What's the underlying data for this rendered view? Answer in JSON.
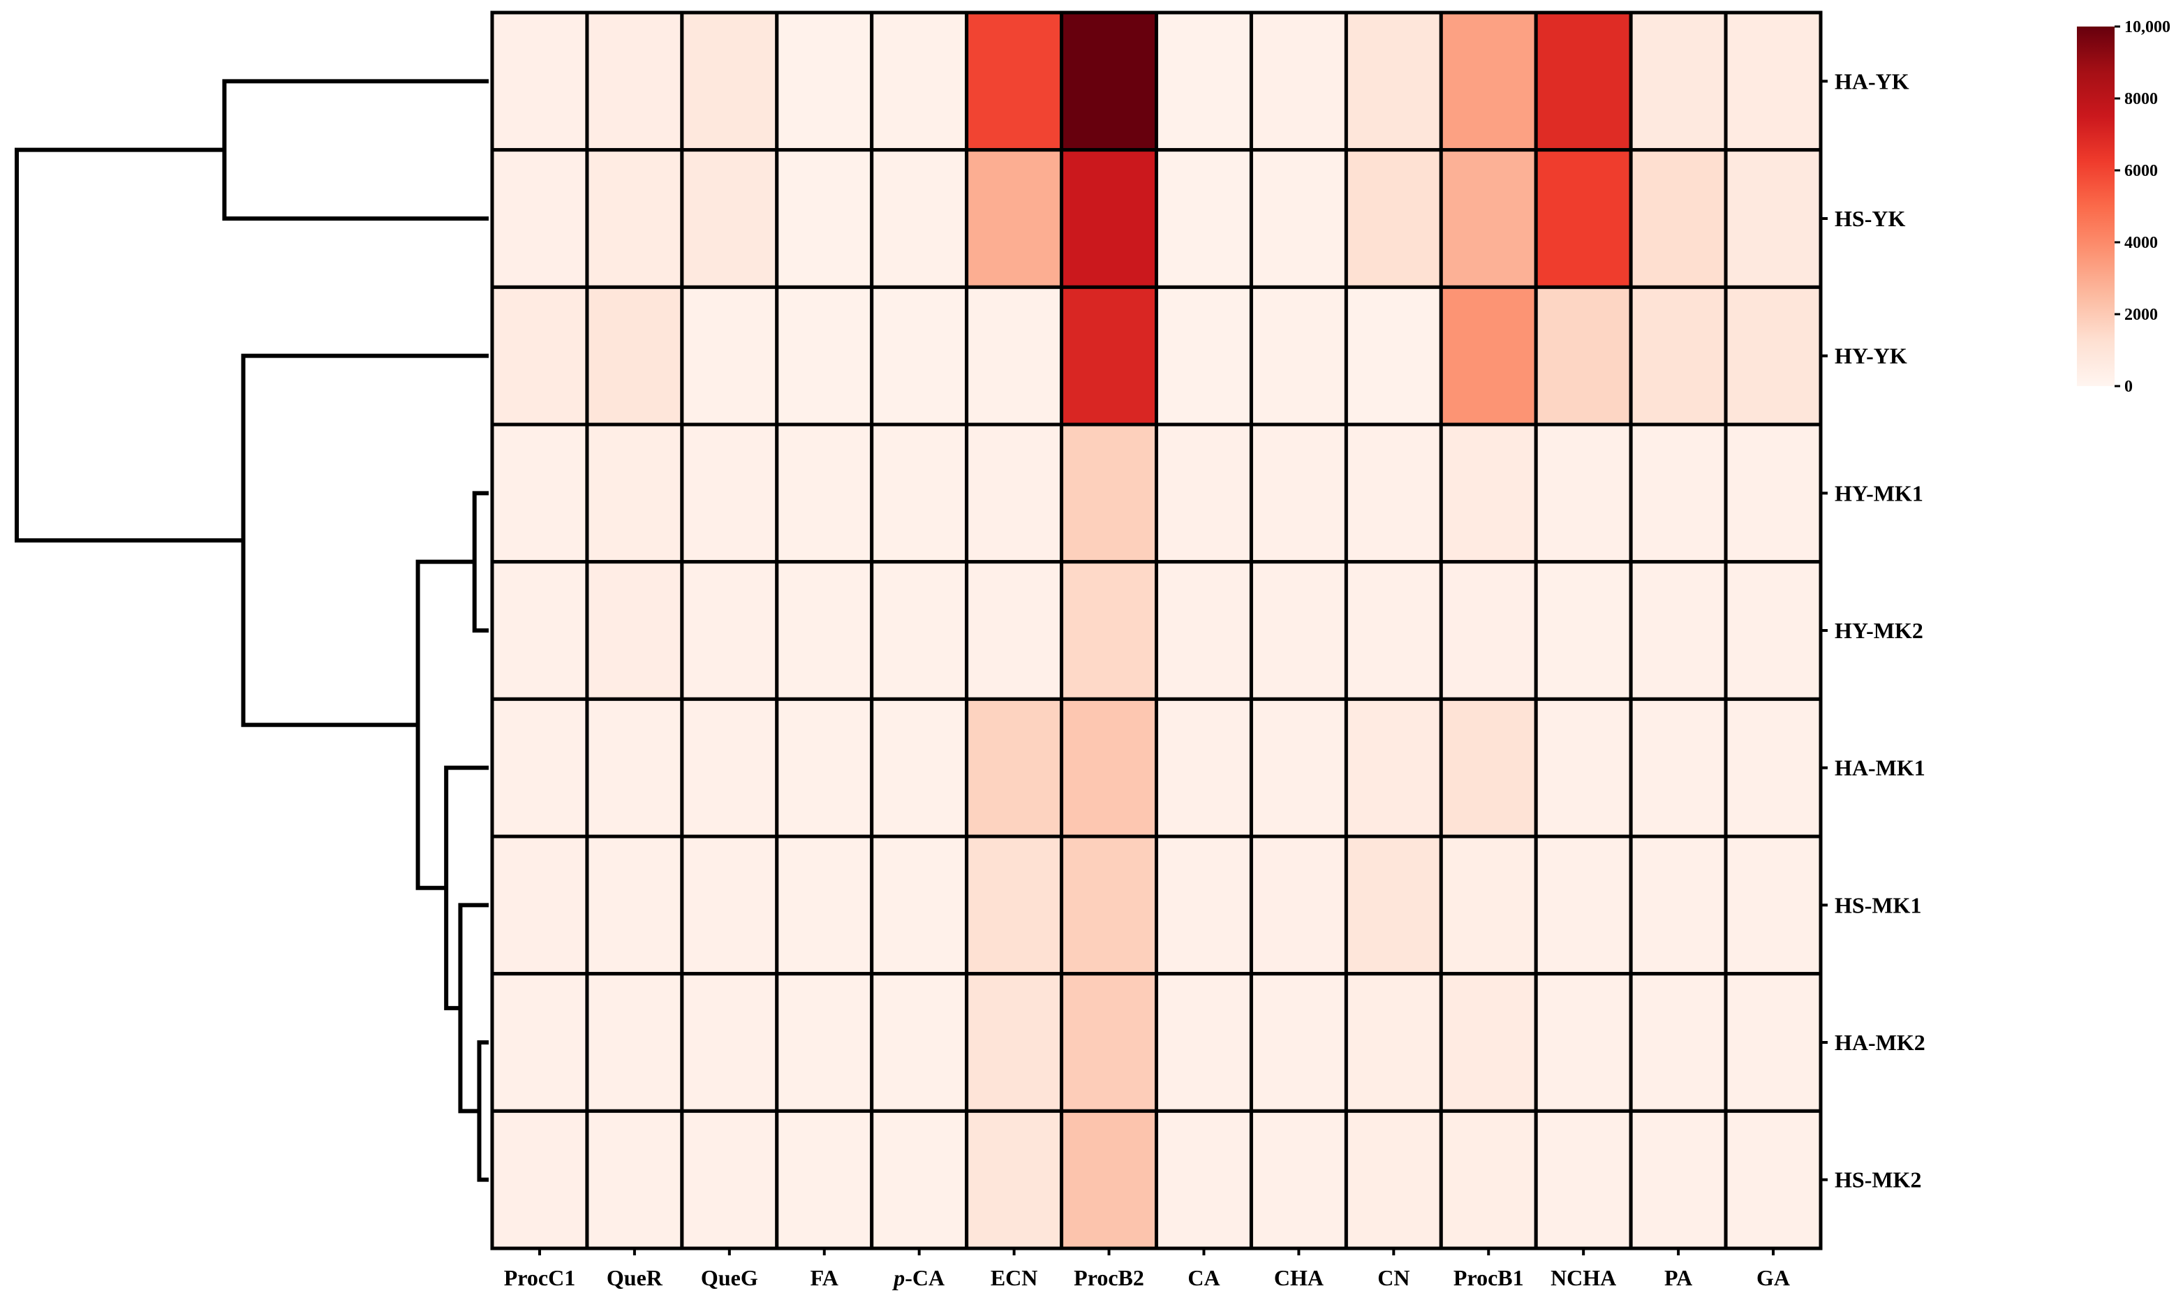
{
  "chart_data": {
    "type": "heatmap",
    "title": "",
    "columns": [
      "ProcC1",
      "QueR",
      "QueG",
      "FA",
      "p-CA",
      "ECN",
      "ProcB2",
      "CA",
      "CHA",
      "CN",
      "ProcB1",
      "NCHA",
      "PA",
      "GA"
    ],
    "rows": [
      "HA-YK",
      "HS-YK",
      "HY-YK",
      "HY-MK1",
      "HY-MK2",
      "HA-MK1",
      "HS-MK1",
      "HA-MK2",
      "HS-MK2"
    ],
    "values": [
      [
        350,
        450,
        800,
        200,
        250,
        6000,
        10000,
        200,
        300,
        900,
        3300,
        6800,
        700,
        600
      ],
      [
        350,
        550,
        700,
        200,
        250,
        2900,
        7500,
        200,
        250,
        1200,
        2800,
        6200,
        1300,
        700
      ],
      [
        600,
        900,
        250,
        200,
        200,
        250,
        7000,
        200,
        250,
        200,
        3700,
        1600,
        1100,
        900
      ],
      [
        300,
        400,
        300,
        250,
        250,
        300,
        1800,
        300,
        300,
        300,
        600,
        300,
        300,
        300
      ],
      [
        300,
        450,
        300,
        250,
        250,
        300,
        1500,
        300,
        300,
        300,
        350,
        250,
        300,
        300
      ],
      [
        300,
        300,
        300,
        250,
        250,
        1700,
        2100,
        300,
        300,
        600,
        1100,
        300,
        300,
        300
      ],
      [
        350,
        300,
        300,
        250,
        250,
        1200,
        1800,
        300,
        350,
        900,
        400,
        300,
        300,
        300
      ],
      [
        300,
        300,
        300,
        250,
        250,
        1000,
        1900,
        300,
        300,
        400,
        600,
        300,
        300,
        300
      ],
      [
        350,
        300,
        300,
        250,
        250,
        900,
        2200,
        300,
        300,
        400,
        400,
        300,
        300,
        300
      ]
    ],
    "colorbar": {
      "min": 0,
      "max": 10000,
      "ticks": [
        0,
        2000,
        4000,
        6000,
        8000,
        10000
      ],
      "tick_labels": [
        "0",
        "2000",
        "4000",
        "6000",
        "8000",
        "10,000"
      ],
      "colormap": "Reds",
      "color_low": "#fff5f0",
      "color_high": "#67000d"
    },
    "row_dendrogram": {
      "position": "left",
      "leaf_order": [
        "HA-YK",
        "HS-YK",
        "HY-YK",
        "HY-MK1",
        "HY-MK2",
        "HA-MK1",
        "HS-MK1",
        "HA-MK2",
        "HS-MK2"
      ],
      "merges": [
        {
          "left": "HA-YK",
          "right": "HS-YK",
          "height": 0.56
        },
        {
          "left": "HA-MK2",
          "right": "HS-MK2",
          "height": 0.02
        },
        {
          "left": "HS-MK1",
          "right": "HA-MK2+HS-MK2",
          "height": 0.06
        },
        {
          "left": "HA-MK1",
          "right": "HS-MK1+HA-MK2+HS-MK2",
          "height": 0.09
        },
        {
          "left": "HY-MK1",
          "right": "HY-MK2",
          "height": 0.03
        },
        {
          "left": "HY-MK1+HY-MK2",
          "right": "HA-MK1+HS-MK1+HA-MK2+HS-MK2",
          "height": 0.15
        },
        {
          "left": "HY-YK",
          "right": "HY-MK1+HY-MK2+HA-MK1+HS-MK1+HA-MK2+HS-MK2",
          "height": 0.52
        },
        {
          "left": "HA-YK+HS-YK",
          "right": "HY-YK+HY-MK1+HY-MK2+HA-MK1+HS-MK1+HA-MK2+HS-MK2",
          "height": 1.0
        }
      ]
    }
  }
}
